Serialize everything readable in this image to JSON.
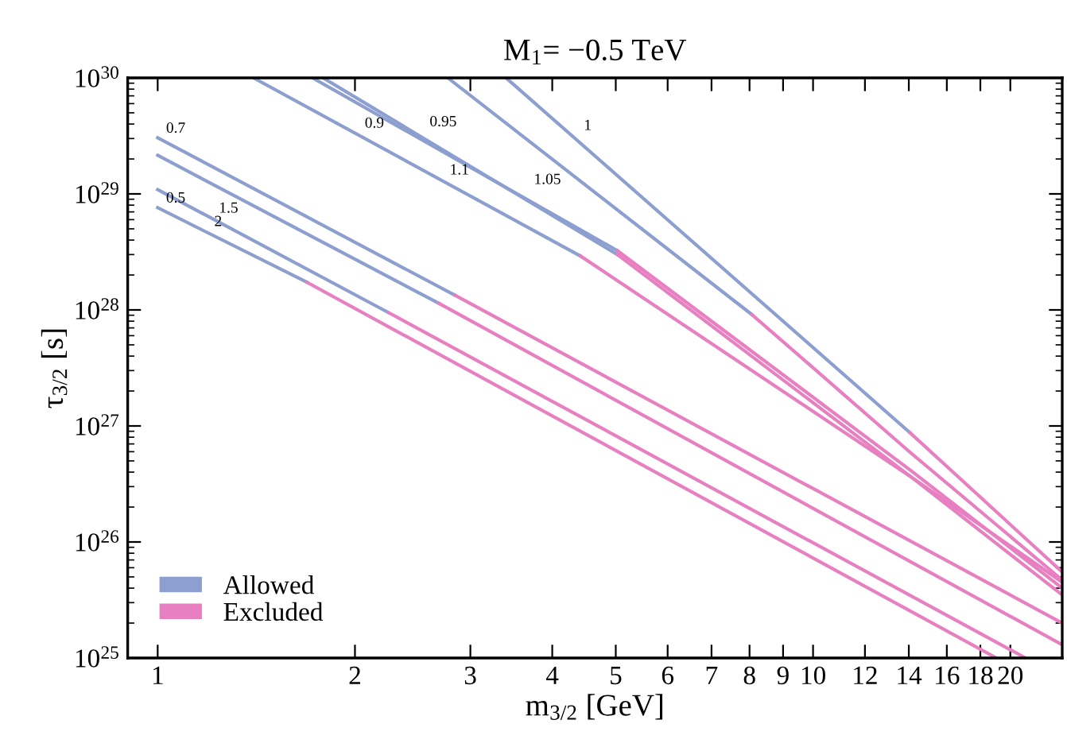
{
  "chart_data": {
    "type": "line",
    "title": "M$_{1}$= −0.5 TeV",
    "xlabel": "m$_{3/2}$ [GeV]",
    "ylabel": "τ$_{3/2}$ [s]",
    "log": "xy",
    "grid": false,
    "legend": "bottom left",
    "marker": "none",
    "line_style": "solid",
    "xlim": [
      0.9,
      24
    ],
    "ylim": [
      1e+25,
      1e+30
    ],
    "xticks": [
      1,
      2,
      3,
      4,
      5,
      6,
      7,
      8,
      9,
      10,
      12,
      14,
      16,
      18,
      20
    ],
    "yticks": [
      {
        "value": 1e+25,
        "label": "10$^{25}$"
      },
      {
        "value": 1e+26,
        "label": "10$^{26}$"
      },
      {
        "value": 1e+27,
        "label": "10$^{27}$"
      },
      {
        "value": 1e+28,
        "label": "10$^{28}$"
      },
      {
        "value": 1e+29,
        "label": "10$^{29}$"
      },
      {
        "value": 1e+30,
        "label": "10$^{30}$"
      }
    ],
    "series": [
      {
        "name": "Allowed",
        "color": "#8c9fcf",
        "x": [
          1,
          2.84
        ],
        "values": [
          3.05e+29,
          1.34e+28
        ]
      },
      {
        "name": "Excluded",
        "color": "#e77fc0",
        "x": [
          2.84,
          24
        ],
        "values": [
          1.34e+28,
          2e+25
        ]
      },
      {
        "color": "#8c9fcf",
        "x": [
          1,
          2.685
        ],
        "values": [
          2.15e+29,
          1.14e+28
        ]
      },
      {
        "color": "#e77fc0",
        "x": [
          2.685,
          24
        ],
        "values": [
          1.14e+28,
          1.3e+25
        ]
      },
      {
        "color": "#8c9fcf",
        "x": [
          1,
          2.249
        ],
        "values": [
          1.09e+29,
          9.5e+27
        ]
      },
      {
        "color": "#e77fc0",
        "x": [
          2.249,
          21.1
        ],
        "values": [
          9.5e+27,
          1e+25
        ]
      },
      {
        "color": "#8c9fcf",
        "x": [
          1,
          1.69
        ],
        "values": [
          7.6e+28,
          1.73e+28
        ]
      },
      {
        "color": "#e77fc0",
        "x": [
          1.69,
          19.05
        ],
        "values": [
          1.73e+28,
          1e+25
        ]
      },
      {
        "color": "#8c9fcf",
        "x": [
          1.4,
          4.415
        ],
        "values": [
          1e+30,
          2.92e+28
        ]
      },
      {
        "color": "#e77fc0",
        "x": [
          4.415,
          14.1,
          24
        ],
        "values": [
          2.92e+28,
          3.65e+26,
          4.5e+25
        ]
      },
      {
        "color": "#8c9fcf",
        "x": [
          1.723,
          5.029
        ],
        "values": [
          1e+30,
          3.24e+28
        ]
      },
      {
        "color": "#e77fc0",
        "x": [
          5.029,
          14.1,
          24
        ],
        "values": [
          3.24e+28,
          4.13e+26,
          4e+25
        ]
      },
      {
        "color": "#8c9fcf",
        "x": [
          1.788,
          5.029
        ],
        "values": [
          1e+30,
          3e+28
        ]
      },
      {
        "color": "#e77fc0",
        "x": [
          5.029,
          14.1,
          24
        ],
        "values": [
          3e+28,
          3.65e+26,
          3.5e+25
        ]
      },
      {
        "color": "#8c9fcf",
        "x": [
          2.771,
          8.07
        ],
        "values": [
          1e+30,
          9.1e+27
        ]
      },
      {
        "color": "#e77fc0",
        "x": [
          8.07,
          14.1,
          24
        ],
        "values": [
          9.1e+27,
          5.85e+26,
          4.7e+25
        ]
      },
      {
        "color": "#8c9fcf",
        "x": [
          3.401,
          14.04
        ],
        "values": [
          1e+30,
          8.8e+26
        ]
      },
      {
        "color": "#e77fc0",
        "x": [
          14.04,
          24
        ],
        "values": [
          8.8e+26,
          5.5e+25
        ]
      }
    ],
    "annotations": [
      {
        "text": "0.7",
        "x": 1.03,
        "y": 2.77e+29
      },
      {
        "text": "0.9",
        "x": 2.07,
        "y": 3.06e+29
      },
      {
        "text": "0.95",
        "x": 2.6,
        "y": 3.15e+29
      },
      {
        "text": "1",
        "x": 4.47,
        "y": 2.92e+29
      },
      {
        "text": "1.1",
        "x": 2.79,
        "y": 1.21e+29
      },
      {
        "text": "1.05",
        "x": 3.75,
        "y": 1e+29
      },
      {
        "text": "1.5",
        "x": 1.24,
        "y": 5.67e+28
      },
      {
        "text": "0.5",
        "x": 1.03,
        "y": 6.93e+28
      },
      {
        "text": "2",
        "x": 1.22,
        "y": 4.34e+28
      }
    ]
  }
}
